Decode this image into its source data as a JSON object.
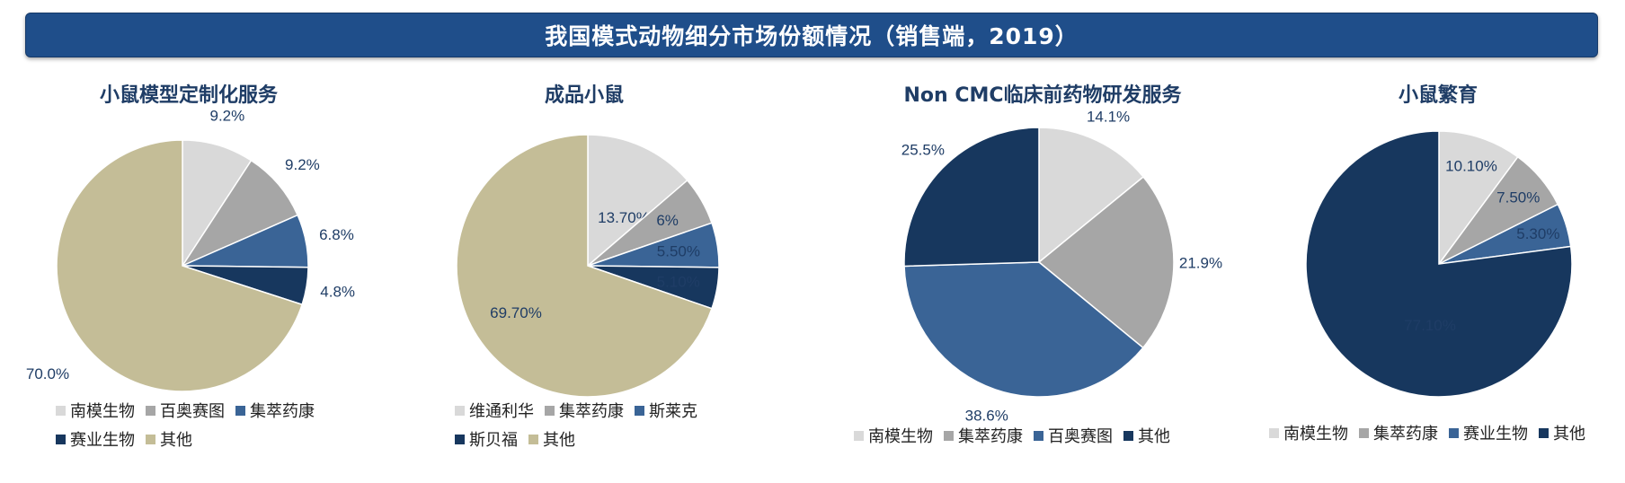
{
  "header": {
    "title": "我国模式动物细分市场份额情况（销售端，2019）"
  },
  "colors": {
    "light_gray": "#d9d9d9",
    "gray": "#a6a6a6",
    "steel_blue": "#3a6496",
    "navy": "#17375e",
    "tan": "#c4bd97"
  },
  "chart_data": [
    {
      "type": "pie",
      "title": "小鼠模型定制化服务",
      "labels": [
        "南模生物",
        "百奥赛图",
        "集萃药康",
        "赛业生物",
        "其他"
      ],
      "values": [
        9.2,
        9.2,
        6.8,
        4.8,
        70.0
      ],
      "value_labels": [
        "9.2%",
        "9.2%",
        "6.8%",
        "4.8%",
        "70.0%"
      ],
      "colors": [
        "#d9d9d9",
        "#a6a6a6",
        "#3a6496",
        "#17375e",
        "#c4bd97"
      ],
      "legend_position": "bottom"
    },
    {
      "type": "pie",
      "title": "成品小鼠",
      "labels": [
        "维通利华",
        "集萃药康",
        "斯莱克",
        "斯贝福",
        "其他"
      ],
      "values": [
        13.7,
        6,
        5.5,
        5.1,
        69.7
      ],
      "value_labels": [
        "13.70%",
        "6%",
        "5.50%",
        "5.10%",
        "69.70%"
      ],
      "colors": [
        "#d9d9d9",
        "#a6a6a6",
        "#3a6496",
        "#17375e",
        "#c4bd97"
      ],
      "legend_position": "bottom"
    },
    {
      "type": "pie",
      "title": "Non CMC临床前药物研发服务",
      "labels": [
        "南模生物",
        "集萃药康",
        "百奥赛图",
        "其他"
      ],
      "values": [
        14.1,
        21.9,
        38.6,
        25.5
      ],
      "value_labels": [
        "14.1%",
        "21.9%",
        "38.6%",
        "25.5%"
      ],
      "colors": [
        "#d9d9d9",
        "#a6a6a6",
        "#3a6496",
        "#17375e"
      ],
      "legend_position": "bottom"
    },
    {
      "type": "pie",
      "title": "小鼠繁育",
      "labels": [
        "南模生物",
        "集萃药康",
        "赛业生物",
        "其他"
      ],
      "values": [
        10.1,
        7.5,
        5.3,
        77.1
      ],
      "value_labels": [
        "10.10%",
        "7.50%",
        "5.30%",
        "77.10%"
      ],
      "colors": [
        "#d9d9d9",
        "#a6a6a6",
        "#3a6496",
        "#17375e"
      ],
      "legend_position": "bottom"
    }
  ]
}
